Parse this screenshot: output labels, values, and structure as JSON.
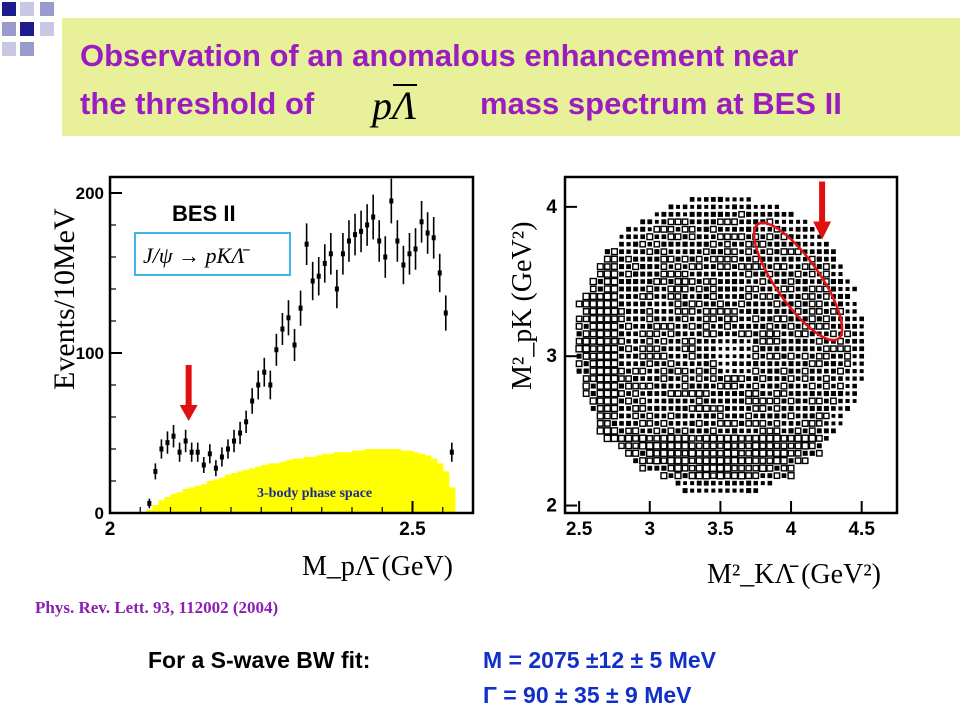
{
  "title": {
    "line1": "Observation of an anomalous enhancement near",
    "line2_pre": "the threshold of",
    "line2_post": "mass spectrum at BES II",
    "math_symbol": "pΛ̄"
  },
  "colors": {
    "title_text": "#9b1cc0",
    "title_bg": "#e8f19a",
    "phase_space_fill": "#ffff00",
    "arrow": "#e01010",
    "fit_values": "#1030c8",
    "reference": "#8a1fb0"
  },
  "reference": "Phys. Rev. Lett. 93, 112002 (2004)",
  "fit": {
    "label": "For a S-wave BW fit:",
    "mass": "M = 2075 ±12 ± 5 MeV",
    "width": "Γ = 90 ± 35 ± 9 MeV"
  },
  "chart_data": [
    {
      "type": "scatter",
      "title": "BES II",
      "annotation_process": "J/ψ → pKΛ̄",
      "annotation_band": "3-body phase space",
      "xlabel": "M_pΛ̄ (GeV)",
      "ylabel": "Events/10MeV",
      "xlim": [
        2.0,
        2.6
      ],
      "ylim": [
        0,
        210
      ],
      "x_ticks": [
        "2",
        "2.5"
      ],
      "y_ticks": [
        "0",
        "100",
        "200"
      ],
      "series": [
        {
          "name": "data",
          "x": [
            2.065,
            2.075,
            2.085,
            2.095,
            2.105,
            2.115,
            2.125,
            2.135,
            2.145,
            2.155,
            2.165,
            2.175,
            2.185,
            2.195,
            2.205,
            2.215,
            2.225,
            2.235,
            2.245,
            2.255,
            2.265,
            2.275,
            2.285,
            2.295,
            2.305,
            2.315,
            2.325,
            2.335,
            2.345,
            2.355,
            2.365,
            2.375,
            2.385,
            2.395,
            2.405,
            2.415,
            2.425,
            2.435,
            2.445,
            2.455,
            2.465,
            2.475,
            2.485,
            2.495,
            2.505,
            2.515,
            2.525,
            2.535,
            2.545,
            2.555,
            2.565
          ],
          "y": [
            6,
            26,
            40,
            44,
            48,
            38,
            45,
            38,
            38,
            30,
            37,
            28,
            35,
            40,
            45,
            50,
            57,
            70,
            80,
            88,
            80,
            102,
            115,
            122,
            105,
            128,
            168,
            145,
            148,
            156,
            162,
            140,
            162,
            170,
            174,
            176,
            180,
            185,
            170,
            160,
            195,
            170,
            155,
            162,
            165,
            182,
            175,
            172,
            150,
            125,
            38
          ],
          "err": [
            3,
            5,
            6,
            7,
            7,
            6,
            7,
            6,
            6,
            5,
            6,
            5,
            6,
            6,
            7,
            7,
            7,
            8,
            9,
            9,
            9,
            10,
            10,
            11,
            10,
            11,
            13,
            12,
            12,
            12,
            13,
            12,
            13,
            13,
            13,
            13,
            13,
            14,
            13,
            13,
            14,
            13,
            12,
            13,
            13,
            13,
            13,
            13,
            12,
            11,
            6
          ]
        },
        {
          "name": "3-body phase space",
          "type": "area",
          "x": [
            2.065,
            2.075,
            2.085,
            2.095,
            2.105,
            2.115,
            2.125,
            2.135,
            2.145,
            2.155,
            2.165,
            2.175,
            2.185,
            2.195,
            2.205,
            2.215,
            2.225,
            2.235,
            2.245,
            2.255,
            2.265,
            2.275,
            2.285,
            2.295,
            2.305,
            2.315,
            2.325,
            2.335,
            2.345,
            2.355,
            2.365,
            2.375,
            2.385,
            2.395,
            2.405,
            2.415,
            2.425,
            2.435,
            2.445,
            2.455,
            2.465,
            2.475,
            2.485,
            2.495,
            2.505,
            2.515,
            2.525,
            2.535,
            2.545,
            2.555,
            2.565
          ],
          "y": [
            2,
            5,
            8,
            10,
            12,
            13,
            15,
            16,
            17,
            18,
            20,
            21,
            22,
            24,
            25,
            26,
            27,
            28,
            29,
            30,
            31,
            31,
            32,
            33,
            34,
            34,
            35,
            35,
            36,
            37,
            37,
            38,
            38,
            38,
            39,
            39,
            40,
            40,
            40,
            40,
            40,
            40,
            39,
            39,
            38,
            37,
            36,
            34,
            31,
            26,
            16
          ]
        }
      ],
      "arrow_at_x": 2.13
    },
    {
      "type": "heatmap",
      "title": "",
      "xlabel": "M²_KΛ̄ (GeV²)",
      "ylabel": "M²_pK (GeV²)",
      "xlim": [
        2.4,
        4.75
      ],
      "ylim": [
        1.95,
        4.2
      ],
      "x_ticks": [
        "2.5",
        "3",
        "3.5",
        "4",
        "4.5"
      ],
      "y_ticks": [
        "2",
        "3",
        "4"
      ],
      "region_description": "Dalitz plot populated roughly within an ellipse; dense boxes along the left edge (M²_KΛ̄ ≈ 2.6) and along the bottom band (M²_pK ≈ 2.3)",
      "highlight": {
        "center": [
          4.05,
          3.5
        ],
        "note": "red ellipse with arrow marking the pΛ̄ threshold enhancement"
      }
    }
  ]
}
